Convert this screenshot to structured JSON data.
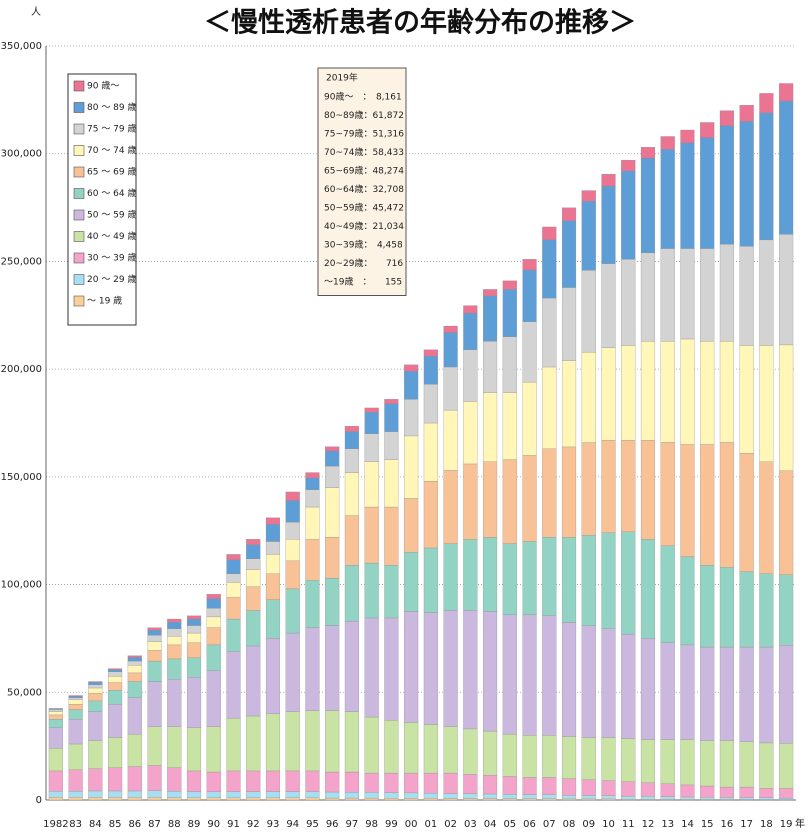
{
  "chart_data": {
    "type": "stacked_bar",
    "title": "＜慢性透析患者の年齢分布の推移＞",
    "y_unit": "人",
    "x_unit": "年",
    "categories": [
      "1982",
      "83",
      "84",
      "85",
      "86",
      "87",
      "88",
      "89",
      "90",
      "91",
      "92",
      "93",
      "94",
      "95",
      "96",
      "97",
      "98",
      "99",
      "00",
      "01",
      "02",
      "03",
      "04",
      "05",
      "06",
      "07",
      "08",
      "09",
      "10",
      "11",
      "12",
      "13",
      "14",
      "15",
      "16",
      "17",
      "18",
      "19"
    ],
    "ylim": [
      0,
      350000
    ],
    "yticks": [
      0,
      {
        "value": 50000,
        "label": "50,000"
      },
      {
        "value": 100000,
        "label": "100,000"
      },
      {
        "value": 150000,
        "label": "150,000"
      },
      {
        "value": 200000,
        "label": "200,000"
      },
      {
        "value": 250000,
        "label": "250,000"
      },
      {
        "value": 300000,
        "label": "300,000"
      },
      {
        "value": 350000,
        "label": "350,000"
      }
    ],
    "grid": true,
    "legend": "upper left",
    "series": [
      {
        "name": "～ 19 歳",
        "color": "#f9cf9a",
        "values": [
          1200,
          1200,
          1200,
          1200,
          1200,
          1200,
          1100,
          1000,
          1000,
          1000,
          1000,
          1000,
          1000,
          1000,
          900,
          900,
          900,
          800,
          800,
          800,
          700,
          700,
          700,
          600,
          600,
          600,
          500,
          500,
          500,
          400,
          400,
          400,
          300,
          300,
          300,
          200,
          200,
          155
        ]
      },
      {
        "name": "20 ～ 29 歳",
        "color": "#a6def2",
        "values": [
          2800,
          2900,
          3000,
          3000,
          3000,
          3100,
          3000,
          2900,
          2800,
          2900,
          2900,
          2900,
          2900,
          2800,
          2800,
          2700,
          2700,
          2600,
          2500,
          2400,
          2300,
          2200,
          2100,
          2000,
          1900,
          1800,
          1700,
          1600,
          1500,
          1400,
          1300,
          1200,
          1100,
          1000,
          900,
          800,
          800,
          716
        ]
      },
      {
        "name": "30 ～ 39 歳",
        "color": "#f4a3cb",
        "values": [
          9500,
          9900,
          10300,
          10800,
          11300,
          11700,
          10900,
          9600,
          9200,
          9600,
          9600,
          9600,
          9600,
          9700,
          9300,
          9400,
          8900,
          9100,
          9200,
          9300,
          9500,
          9100,
          8700,
          8400,
          8000,
          8100,
          7700,
          7300,
          7000,
          6700,
          6300,
          5900,
          5600,
          5200,
          4800,
          5000,
          4500,
          4458
        ]
      },
      {
        "name": "40 ～ 49 歳",
        "color": "#c8e3a3",
        "values": [
          10500,
          12000,
          13000,
          14000,
          15000,
          18000,
          19000,
          20000,
          21000,
          24500,
          25500,
          26500,
          27500,
          28000,
          28500,
          28000,
          26000,
          24500,
          23500,
          22500,
          21500,
          21000,
          20500,
          19500,
          19500,
          19500,
          19500,
          19500,
          20000,
          20000,
          20000,
          20500,
          21000,
          21000,
          21500,
          21000,
          21000,
          21034
        ]
      },
      {
        "name": "50 ～ 59 歳",
        "color": "#cbb8de",
        "values": [
          9500,
          11500,
          13500,
          15500,
          17000,
          21000,
          22000,
          23500,
          26000,
          31000,
          32500,
          35000,
          36500,
          38500,
          39500,
          42000,
          46000,
          47500,
          51500,
          52000,
          54000,
          55000,
          55500,
          55500,
          56000,
          55500,
          53000,
          52000,
          50500,
          48500,
          47000,
          45000,
          44000,
          43500,
          43500,
          44000,
          44500,
          45472
        ]
      },
      {
        "name": "60 ～ 64 歳",
        "color": "#93d3c3",
        "values": [
          4000,
          4500,
          5000,
          6500,
          7500,
          9500,
          9500,
          9000,
          12000,
          15000,
          16500,
          18000,
          20500,
          22000,
          22000,
          26000,
          25500,
          24500,
          27500,
          30000,
          31000,
          33000,
          34500,
          33000,
          34000,
          36500,
          39500,
          42000,
          44500,
          47500,
          46000,
          45000,
          41000,
          38000,
          37000,
          35000,
          34000,
          32708
        ]
      },
      {
        "name": "65 ～ 69 歳",
        "color": "#f8c196",
        "values": [
          2000,
          2500,
          3500,
          3500,
          4000,
          5000,
          6500,
          7000,
          8000,
          10000,
          11000,
          12000,
          13000,
          19000,
          19000,
          23000,
          26000,
          27000,
          25000,
          31000,
          34000,
          35000,
          35000,
          39000,
          40000,
          41000,
          42000,
          43000,
          43000,
          42500,
          46000,
          48000,
          52000,
          56000,
          58000,
          55000,
          52000,
          48274
        ]
      },
      {
        "name": "70 ～ 74 歳",
        "color": "#fff6b8",
        "values": [
          1500,
          2000,
          2500,
          3000,
          3500,
          4000,
          4000,
          4500,
          5000,
          7000,
          8000,
          9000,
          10000,
          15000,
          23000,
          20000,
          21000,
          22000,
          29000,
          27000,
          28000,
          29000,
          32000,
          31000,
          34000,
          38000,
          40000,
          42000,
          43000,
          44000,
          46000,
          47000,
          49000,
          48000,
          47000,
          50000,
          54000,
          58433
        ]
      },
      {
        "name": "75 ～ 79 歳",
        "color": "#d3d3d3",
        "values": [
          1000,
          1000,
          1500,
          2000,
          2000,
          3000,
          3500,
          3500,
          4000,
          4000,
          5000,
          6000,
          8000,
          8000,
          10000,
          11000,
          13000,
          13000,
          17000,
          18000,
          20000,
          24000,
          24000,
          26000,
          28000,
          32000,
          34000,
          38000,
          39000,
          40000,
          41000,
          43000,
          42000,
          43000,
          45000,
          46000,
          49000,
          51316
        ]
      },
      {
        "name": "80 ～ 89 歳",
        "color": "#5e9ed6",
        "values": [
          300,
          700,
          1100,
          1000,
          1700,
          2300,
          3000,
          3000,
          4500,
          6500,
          6500,
          8000,
          10000,
          5500,
          7000,
          8000,
          10000,
          13000,
          13000,
          13000,
          16000,
          17000,
          21000,
          22000,
          24000,
          27000,
          31000,
          32000,
          36000,
          41000,
          44000,
          46000,
          49000,
          51500,
          55000,
          58000,
          59000,
          61872
        ]
      },
      {
        "name": "90 歳～",
        "color": "#ea7491",
        "values": [
          200,
          300,
          400,
          500,
          800,
          1200,
          1500,
          1500,
          2000,
          2500,
          2500,
          3000,
          4000,
          2500,
          2000,
          2500,
          2000,
          2000,
          3000,
          3000,
          3000,
          3500,
          3000,
          4000,
          5000,
          6000,
          6000,
          5000,
          5500,
          5000,
          5000,
          6000,
          6000,
          7000,
          7000,
          7500,
          9000,
          8161
        ]
      }
    ],
    "annotation": {
      "title": "2019年",
      "rows": [
        "90歳～　：　8,161",
        "80~89歳：61,872",
        "75~79歳：51,316",
        "70~74歳：58,433",
        "65~69歳：48,274",
        "60~64歳：32,708",
        "50~59歳：45,472",
        "40~49歳：21,034",
        "30~39歳：　4,458",
        "20~29歳：　　716",
        "～19歳　：　　155"
      ]
    }
  }
}
